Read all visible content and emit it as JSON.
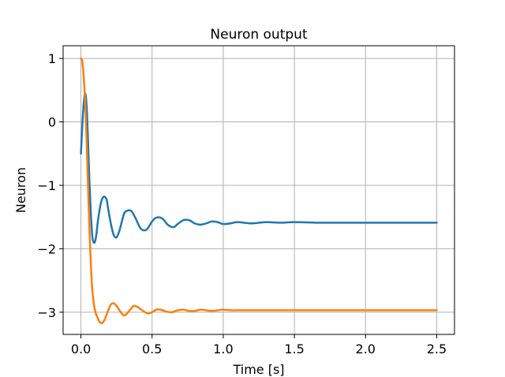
{
  "chart_data": {
    "type": "line",
    "title": "Neuron output",
    "xlabel": "Time [s]",
    "ylabel": "Neuron",
    "xlim": [
      -0.125,
      2.625
    ],
    "ylim": [
      -3.35,
      1.2
    ],
    "grid": true,
    "legend": "none",
    "x_ticks": [
      0.0,
      0.5,
      1.0,
      1.5,
      2.0,
      2.5
    ],
    "x_tick_labels": [
      "0.0",
      "0.5",
      "1.0",
      "1.5",
      "2.0",
      "2.5"
    ],
    "y_ticks": [
      1,
      0,
      -1,
      -2,
      -3
    ],
    "y_tick_labels": [
      "1",
      "0",
      "−1",
      "−2",
      "−3"
    ],
    "series": [
      {
        "color": "#1f77b4",
        "x": [
          0.0,
          0.01,
          0.02,
          0.03,
          0.04,
          0.05,
          0.06,
          0.07,
          0.08,
          0.09,
          0.1,
          0.11,
          0.12,
          0.14,
          0.16,
          0.18,
          0.19,
          0.21,
          0.23,
          0.25,
          0.27,
          0.29,
          0.31,
          0.35,
          0.38,
          0.42,
          0.46,
          0.5,
          0.53,
          0.57,
          0.61,
          0.65,
          0.68,
          0.72,
          0.76,
          0.8,
          0.84,
          0.88,
          0.92,
          0.96,
          1.0,
          1.05,
          1.1,
          1.2,
          1.3,
          1.4,
          1.5,
          1.7,
          2.0,
          2.5
        ],
        "y": [
          -0.5,
          -0.05,
          0.3,
          0.45,
          0.25,
          -0.3,
          -0.95,
          -1.45,
          -1.8,
          -1.9,
          -1.88,
          -1.75,
          -1.55,
          -1.28,
          -1.18,
          -1.22,
          -1.35,
          -1.6,
          -1.78,
          -1.82,
          -1.72,
          -1.55,
          -1.42,
          -1.4,
          -1.5,
          -1.68,
          -1.7,
          -1.57,
          -1.51,
          -1.52,
          -1.62,
          -1.66,
          -1.61,
          -1.55,
          -1.55,
          -1.6,
          -1.62,
          -1.6,
          -1.57,
          -1.58,
          -1.61,
          -1.6,
          -1.58,
          -1.6,
          -1.58,
          -1.59,
          -1.58,
          -1.59,
          -1.59,
          -1.59
        ]
      },
      {
        "color": "#ff7f0e",
        "x": [
          0.0,
          0.01,
          0.02,
          0.03,
          0.04,
          0.05,
          0.06,
          0.07,
          0.08,
          0.09,
          0.1,
          0.11,
          0.12,
          0.13,
          0.15,
          0.17,
          0.19,
          0.21,
          0.23,
          0.25,
          0.28,
          0.3,
          0.32,
          0.35,
          0.37,
          0.4,
          0.43,
          0.47,
          0.5,
          0.53,
          0.56,
          0.6,
          0.64,
          0.68,
          0.72,
          0.76,
          0.8,
          0.84,
          0.88,
          0.92,
          0.96,
          1.0,
          1.05,
          1.1,
          1.2,
          1.3,
          1.5,
          1.7,
          2.0,
          2.5
        ],
        "y": [
          1.0,
          0.95,
          0.7,
          0.3,
          -0.3,
          -1.0,
          -1.7,
          -2.25,
          -2.65,
          -2.85,
          -2.98,
          -3.05,
          -3.1,
          -3.15,
          -3.17,
          -3.1,
          -2.98,
          -2.88,
          -2.86,
          -2.9,
          -3.0,
          -3.05,
          -3.03,
          -2.95,
          -2.9,
          -2.92,
          -2.97,
          -3.02,
          -3.0,
          -2.96,
          -2.96,
          -2.99,
          -3.0,
          -2.97,
          -2.96,
          -2.98,
          -2.98,
          -2.96,
          -2.97,
          -2.98,
          -2.97,
          -2.96,
          -2.97,
          -2.97,
          -2.97,
          -2.97,
          -2.97,
          -2.97,
          -2.97,
          -2.97
        ]
      }
    ]
  }
}
